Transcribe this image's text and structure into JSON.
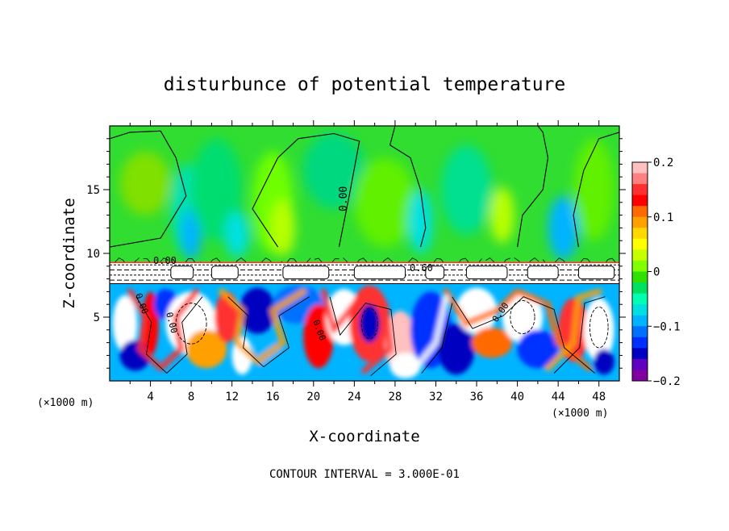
{
  "chart_data": {
    "type": "heatmap",
    "title": "disturbunce of potential temperature",
    "xlabel": "X-coordinate",
    "ylabel": "Z-coordinate",
    "x_unit": "(×1000 m)",
    "y_unit": "(×1000 m)",
    "xlim": [
      0,
      50
    ],
    "ylim": [
      0,
      20
    ],
    "x_ticks": [
      4,
      8,
      12,
      16,
      20,
      24,
      28,
      32,
      36,
      40,
      44,
      48
    ],
    "y_ticks": [
      5,
      10,
      15
    ],
    "footer": "CONTOUR INTERVAL = 3.000E-01",
    "contour_interval": 0.3,
    "contour_labels": [
      "0.00",
      "0.00",
      "0.60",
      "0.00",
      "0.00",
      "0.00",
      "0.00"
    ],
    "colorbar": {
      "range": [
        -0.2,
        0.2
      ],
      "tick_labels": [
        "0.2",
        "0.1",
        "0",
        "−0.1",
        "−0.2"
      ],
      "tick_values": [
        0.2,
        0.1,
        0,
        -0.1,
        -0.2
      ],
      "colors": [
        "#ffc0c0",
        "#ff8080",
        "#ff3030",
        "#ff0000",
        "#ff6a00",
        "#ffa000",
        "#ffd800",
        "#ffff00",
        "#c8ff00",
        "#80ff00",
        "#30e000",
        "#00e060",
        "#00ffb0",
        "#00e0e0",
        "#00b4ff",
        "#0070ff",
        "#0030ff",
        "#0000c0",
        "#6000c0",
        "#8000a0"
      ]
    },
    "layers": {
      "upper": {
        "z_range": [
          9.3,
          20
        ],
        "base_value": 0.0
      },
      "interface": {
        "z_range": [
          7.6,
          9.3
        ]
      },
      "lower": {
        "z_range": [
          0,
          7.6
        ],
        "value_range": [
          -0.2,
          0.2
        ]
      }
    },
    "upper_blobs": [
      {
        "x": 3.5,
        "z": 15.5,
        "rx": 2.5,
        "rz": 2.5,
        "color": "#80e000"
      },
      {
        "x": 7.5,
        "z": 13.5,
        "rx": 1.5,
        "rz": 3.5,
        "color": "#00e0b0"
      },
      {
        "x": 8.0,
        "z": 11.5,
        "rx": 1.0,
        "rz": 2.0,
        "color": "#00b4ff"
      },
      {
        "x": 10.5,
        "z": 15.0,
        "rx": 2.5,
        "rz": 4.0,
        "color": "#00dd70"
      },
      {
        "x": 12.5,
        "z": 11.5,
        "rx": 1.2,
        "rz": 1.8,
        "color": "#00e0e0"
      },
      {
        "x": 16.0,
        "z": 14.0,
        "rx": 2.0,
        "rz": 4.0,
        "color": "#70ff00"
      },
      {
        "x": 17.0,
        "z": 12.0,
        "rx": 1.2,
        "rz": 2.2,
        "color": "#b8ff00"
      },
      {
        "x": 22.0,
        "z": 16.5,
        "rx": 3.0,
        "rz": 3.0,
        "color": "#00d880"
      },
      {
        "x": 27.0,
        "z": 14.0,
        "rx": 3.0,
        "rz": 3.5,
        "color": "#60f000"
      },
      {
        "x": 30.5,
        "z": 12.5,
        "rx": 1.2,
        "rz": 2.5,
        "color": "#00e0e0"
      },
      {
        "x": 35.0,
        "z": 15.0,
        "rx": 2.5,
        "rz": 3.5,
        "color": "#00e090"
      },
      {
        "x": 38.5,
        "z": 13.0,
        "rx": 1.2,
        "rz": 2.2,
        "color": "#b8ff00"
      },
      {
        "x": 44.5,
        "z": 12.0,
        "rx": 1.5,
        "rz": 2.5,
        "color": "#00b4ff"
      },
      {
        "x": 47.5,
        "z": 15.0,
        "rx": 2.0,
        "rz": 4.0,
        "color": "#60f000"
      }
    ],
    "lower_blobs": [
      {
        "x": 1.5,
        "z": 4.5,
        "rx": 1.2,
        "rz": 2.2,
        "color": "#ffffff"
      },
      {
        "x": 2.5,
        "z": 2.0,
        "rx": 1.5,
        "rz": 1.2,
        "color": "#0000c0"
      },
      {
        "x": 4.0,
        "z": 4.5,
        "rx": 0.8,
        "rz": 2.5,
        "color": "#ff0000"
      },
      {
        "x": 5.5,
        "z": 6.0,
        "rx": 1.2,
        "rz": 1.2,
        "color": "#0030ff"
      },
      {
        "x": 8.0,
        "z": 4.5,
        "rx": 2.5,
        "rz": 2.5,
        "color": "#ffffff"
      },
      {
        "x": 9.5,
        "z": 2.5,
        "rx": 2.0,
        "rz": 1.5,
        "color": "#ffa000"
      },
      {
        "x": 11.5,
        "z": 5.0,
        "rx": 1.2,
        "rz": 2.0,
        "color": "#ff3030"
      },
      {
        "x": 13.0,
        "z": 2.0,
        "rx": 1.0,
        "rz": 1.5,
        "color": "#ffffff"
      },
      {
        "x": 14.5,
        "z": 5.5,
        "rx": 1.8,
        "rz": 1.8,
        "color": "#0000c0"
      },
      {
        "x": 15.5,
        "z": 2.0,
        "rx": 1.5,
        "rz": 1.2,
        "color": "#00b4ff"
      },
      {
        "x": 18.5,
        "z": 6.0,
        "rx": 2.5,
        "rz": 1.5,
        "color": "#0070ff"
      },
      {
        "x": 20.5,
        "z": 3.5,
        "rx": 1.5,
        "rz": 2.5,
        "color": "#ff0000"
      },
      {
        "x": 23.0,
        "z": 5.0,
        "rx": 1.8,
        "rz": 2.2,
        "color": "#ffffff"
      },
      {
        "x": 25.5,
        "z": 4.5,
        "rx": 2.0,
        "rz": 3.0,
        "color": "#ff3030"
      },
      {
        "x": 25.5,
        "z": 4.5,
        "rx": 1.0,
        "rz": 1.5,
        "color": "#0000c0"
      },
      {
        "x": 28.5,
        "z": 3.0,
        "rx": 1.5,
        "rz": 2.5,
        "color": "#ffc0c0"
      },
      {
        "x": 29.0,
        "z": 1.2,
        "rx": 1.5,
        "rz": 1.0,
        "color": "#ffffff"
      },
      {
        "x": 31.5,
        "z": 4.0,
        "rx": 2.0,
        "rz": 3.0,
        "color": "#0030ff"
      },
      {
        "x": 34.0,
        "z": 2.5,
        "rx": 1.8,
        "rz": 2.0,
        "color": "#0000c0"
      },
      {
        "x": 36.0,
        "z": 5.5,
        "rx": 2.0,
        "rz": 1.8,
        "color": "#ffffff"
      },
      {
        "x": 37.5,
        "z": 3.0,
        "rx": 2.0,
        "rz": 1.2,
        "color": "#ff6a00"
      },
      {
        "x": 40.5,
        "z": 5.0,
        "rx": 2.0,
        "rz": 2.0,
        "color": "#ffffff"
      },
      {
        "x": 42.0,
        "z": 2.5,
        "rx": 2.0,
        "rz": 1.5,
        "color": "#0030ff"
      },
      {
        "x": 45.5,
        "z": 4.0,
        "rx": 1.5,
        "rz": 2.5,
        "color": "#ff3030"
      },
      {
        "x": 48.0,
        "z": 4.0,
        "rx": 1.5,
        "rz": 2.5,
        "color": "#ffffff"
      },
      {
        "x": 48.5,
        "z": 1.5,
        "rx": 1.0,
        "rz": 1.0,
        "color": "#0000c0"
      }
    ],
    "upper_contours": [
      {
        "points": [
          [
            0,
            19
          ],
          [
            2,
            19.5
          ],
          [
            5,
            19.6
          ],
          [
            6.5,
            17.5
          ],
          [
            7.5,
            14.5
          ],
          [
            5,
            11.2
          ],
          [
            0,
            10.5
          ]
        ]
      },
      {
        "points": [
          [
            16.5,
            10.5
          ],
          [
            14,
            13.5
          ],
          [
            16.5,
            17.5
          ],
          [
            18.5,
            19.0
          ],
          [
            22,
            19.4
          ],
          [
            24.5,
            18.8
          ],
          [
            23.5,
            14.5
          ],
          [
            22.5,
            10.5
          ]
        ]
      },
      {
        "points": [
          [
            28,
            20
          ],
          [
            27.5,
            18.5
          ],
          [
            29.5,
            17.5
          ],
          [
            30.5,
            15
          ],
          [
            31,
            12
          ],
          [
            30.5,
            10.5
          ]
        ]
      },
      {
        "points": [
          [
            40,
            10.5
          ],
          [
            40.5,
            13
          ],
          [
            42.5,
            15
          ],
          [
            43,
            17.5
          ],
          [
            42.5,
            19.5
          ],
          [
            42,
            20
          ]
        ]
      },
      {
        "points": [
          [
            46,
            10.5
          ],
          [
            45.5,
            13
          ],
          [
            46.5,
            16.5
          ],
          [
            48,
            19
          ],
          [
            50,
            19.5
          ]
        ]
      }
    ]
  }
}
